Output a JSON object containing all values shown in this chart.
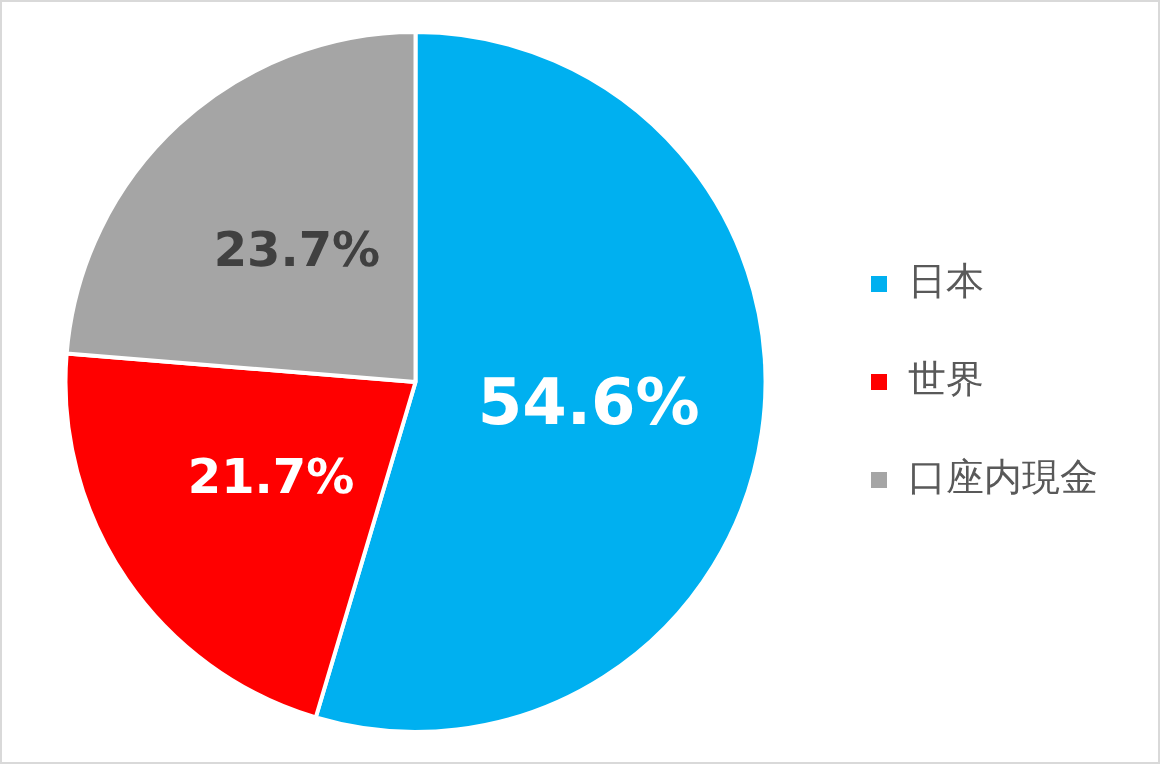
{
  "chart_data": {
    "type": "pie",
    "categories": [
      "日本",
      "世界",
      "口座内現金"
    ],
    "values": [
      54.6,
      21.7,
      23.7
    ],
    "colors": [
      "#00b0f0",
      "#ff0000",
      "#a5a5a5"
    ],
    "value_labels": [
      "54.6%",
      "21.7%",
      "23.7%"
    ],
    "legend": "right"
  }
}
